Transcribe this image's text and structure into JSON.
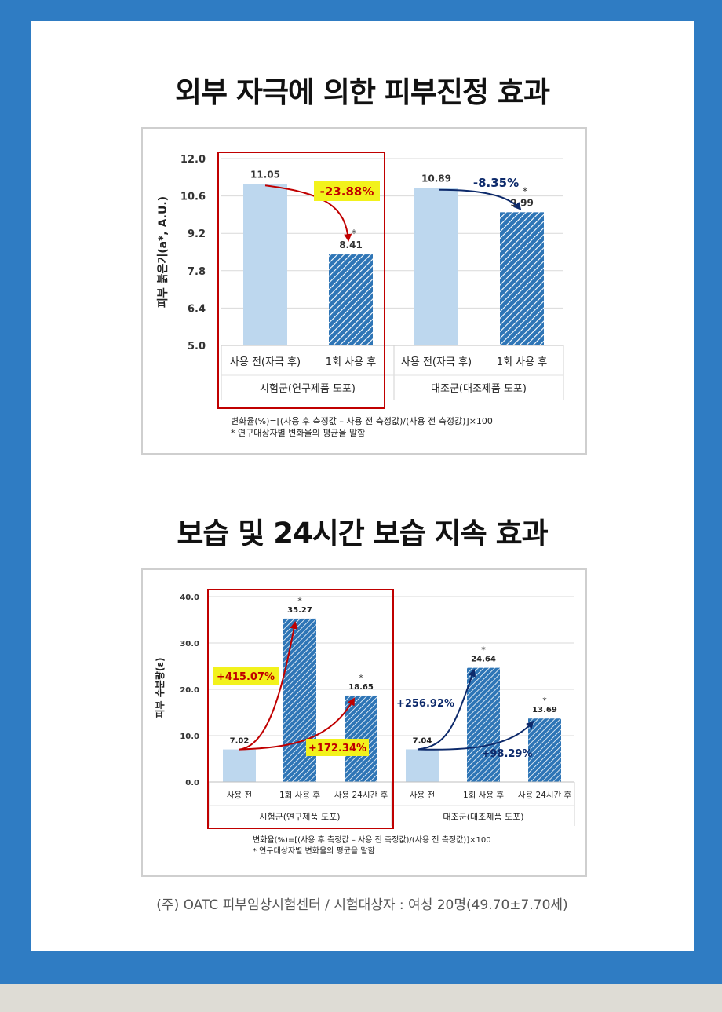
{
  "section1": {
    "title": "외부 자극에 의한 피부진정 효과"
  },
  "section2": {
    "title": "보습 및 24시간 보습 지속 효과"
  },
  "source": "(주) OATC 피부임상시험센터 / 시험대상자 : 여성 20명(49.70±7.70세)",
  "colors": {
    "page_bg": "#2f7cc3",
    "light_bar": "#bdd7ee",
    "hatch_bar": "#2e75b6",
    "test_arrow": "#c00000",
    "control_arrow": "#0d2a6b",
    "highlight": "#f2f21c",
    "frame": "#c00000"
  },
  "chart_data": [
    {
      "type": "bar",
      "title": "",
      "ylabel": "피부 붉은기(a*, A.U.)",
      "ylim": [
        5.0,
        12.0
      ],
      "yticks": [
        "12.0",
        "10.6",
        "9.2",
        "7.8",
        "6.4",
        "5.0"
      ],
      "categories": [
        "사용 전(자극 후)",
        "1회 사용 후",
        "사용 전(자극 후)",
        "1회 사용 후"
      ],
      "groups": [
        "시험군(연구제품 도포)",
        "대조군(대조제품 도포)"
      ],
      "values": [
        11.05,
        8.41,
        10.89,
        9.99
      ],
      "labels": [
        "11.05",
        "8.41",
        "10.89",
        "9.99"
      ],
      "significant": [
        false,
        true,
        false,
        true
      ],
      "changes": [
        {
          "label": "-23.88%",
          "from": 0,
          "to": 1
        },
        {
          "label": "-8.35%",
          "from": 2,
          "to": 3
        }
      ],
      "notes": [
        "변화율(%)=[(사용 후 측정값 – 사용 전 측정값)/(사용 전 측정값)]×100",
        "* 연구대상자별 변화율의 평균을 말함"
      ]
    },
    {
      "type": "bar",
      "title": "",
      "ylabel": "피부 수분량(ε)",
      "ylim": [
        0.0,
        40.0
      ],
      "yticks": [
        "40.0",
        "30.0",
        "20.0",
        "10.0",
        "0.0"
      ],
      "categories": [
        "사용 전",
        "1회 사용 후",
        "사용 24시간 후",
        "사용 전",
        "1회 사용 후",
        "사용 24시간 후"
      ],
      "groups": [
        "시험군(연구제품 도포)",
        "대조군(대조제품 도포)"
      ],
      "values": [
        7.02,
        35.27,
        18.65,
        7.04,
        24.64,
        13.69
      ],
      "labels": [
        "7.02",
        "35.27",
        "18.65",
        "7.04",
        "24.64",
        "13.69"
      ],
      "significant": [
        false,
        true,
        true,
        false,
        true,
        true
      ],
      "changes": [
        {
          "label": "+415.07%",
          "from": 0,
          "to": 1
        },
        {
          "label": "+172.34%",
          "from": 0,
          "to": 2
        },
        {
          "label": "+256.92%",
          "from": 3,
          "to": 4
        },
        {
          "label": "+98.29%",
          "from": 3,
          "to": 5
        }
      ],
      "notes": [
        "변화율(%)=[(사용 후 측정값 – 사용 전 측정값)/(사용 전 측정값)]×100",
        "* 연구대상자별 변화율의 평균을 말함"
      ]
    }
  ]
}
